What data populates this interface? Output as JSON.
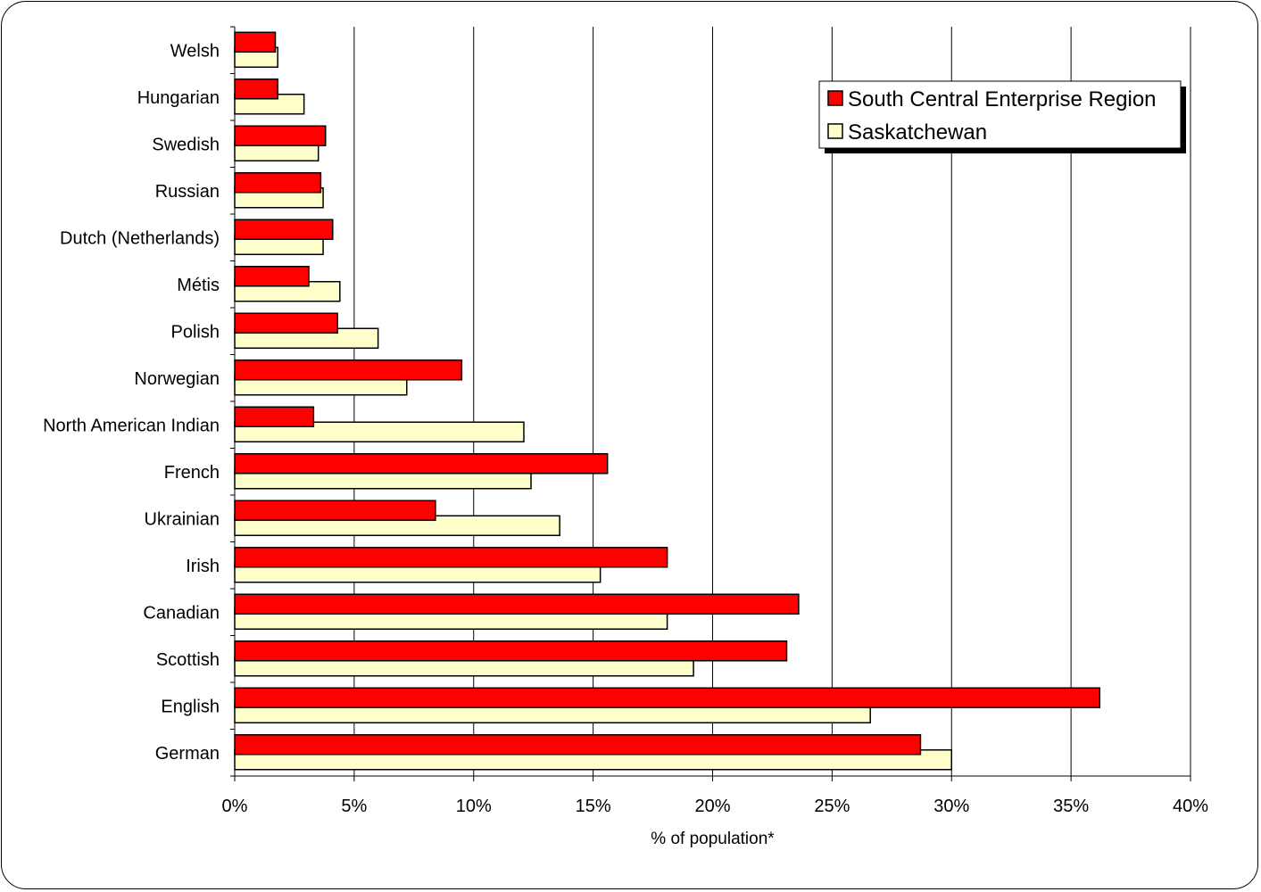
{
  "chart_data": {
    "type": "bar",
    "orientation": "horizontal",
    "categories": [
      "Welsh",
      "Hungarian",
      "Swedish",
      "Russian",
      "Dutch (Netherlands)",
      "Métis",
      "Polish",
      "Norwegian",
      "North American Indian",
      "French",
      "Ukrainian",
      "Irish",
      "Canadian",
      "Scottish",
      "English",
      "German"
    ],
    "series": [
      {
        "name": "South Central Enterprise Region",
        "color": "#ff0000",
        "values": [
          1.7,
          1.8,
          3.8,
          3.6,
          4.1,
          3.1,
          4.3,
          9.5,
          3.3,
          15.6,
          8.4,
          18.1,
          23.6,
          23.1,
          36.2,
          28.7
        ]
      },
      {
        "name": "Saskatchewan",
        "color": "#ffffcc",
        "values": [
          1.8,
          2.9,
          3.5,
          3.7,
          3.7,
          4.4,
          6.0,
          7.2,
          12.1,
          12.4,
          13.6,
          15.3,
          18.1,
          19.2,
          26.6,
          30.0
        ]
      }
    ],
    "xlabel": "% of population*",
    "xlim": [
      0,
      40
    ],
    "xticks": [
      0,
      5,
      10,
      15,
      20,
      25,
      30,
      35,
      40
    ],
    "xtick_labels": [
      "0%",
      "5%",
      "10%",
      "15%",
      "20%",
      "25%",
      "30%",
      "35%",
      "40%"
    ],
    "grid": "vertical",
    "legend_position": "top-right"
  }
}
